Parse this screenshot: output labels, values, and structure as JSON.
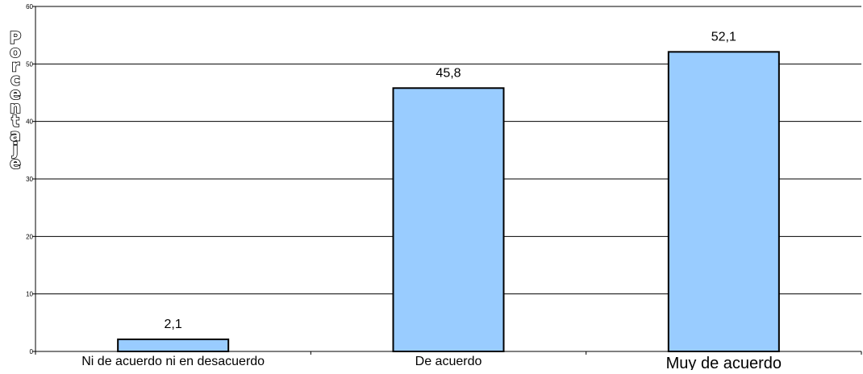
{
  "chart_data": {
    "type": "bar",
    "categories": [
      "Ni de acuerdo ni en desacuerdo",
      "De acuerdo",
      "Muy de acuerdo"
    ],
    "values": [
      2.1,
      45.8,
      52.1
    ],
    "data_labels": [
      "2,1",
      "45,8",
      "52,1"
    ],
    "title": "",
    "xlabel": "",
    "ylabel": "Porcentaje",
    "ylim": [
      0,
      60
    ],
    "yticks": [
      "0",
      "10",
      "20",
      "30",
      "40",
      "50",
      "60"
    ],
    "grid": true,
    "legend": "none",
    "bar_color": "#99ccff",
    "bar_edge_color": "#000000"
  }
}
